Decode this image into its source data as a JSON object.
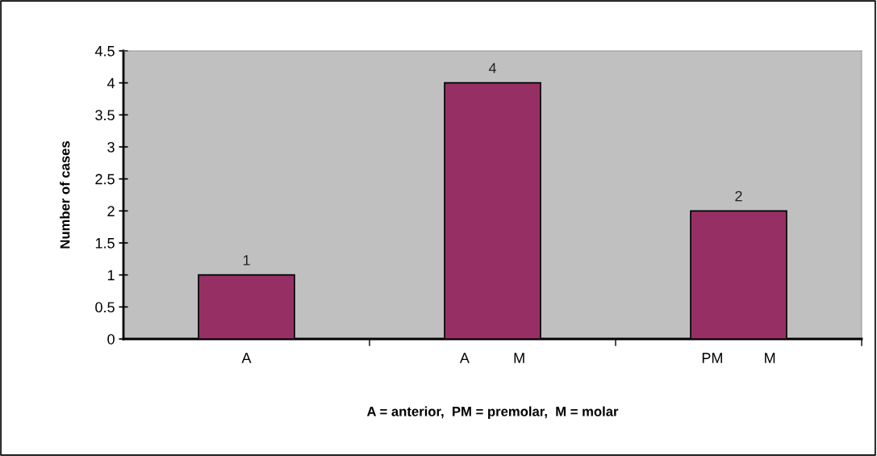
{
  "chart_data": {
    "type": "bar",
    "categories": [
      "A",
      "A           M",
      "PM          M"
    ],
    "values": [
      1,
      4,
      2
    ],
    "color": "#963064",
    "ylabel": "Number of cases",
    "xlabel": "A = anterior,  PM = premolar,  M = molar",
    "ylim": [
      0,
      4.5
    ],
    "yticks": [
      0,
      0.5,
      1,
      1.5,
      2,
      2.5,
      3,
      3.5,
      4,
      4.5
    ],
    "data_labels": true,
    "grid": false,
    "legend": false
  }
}
